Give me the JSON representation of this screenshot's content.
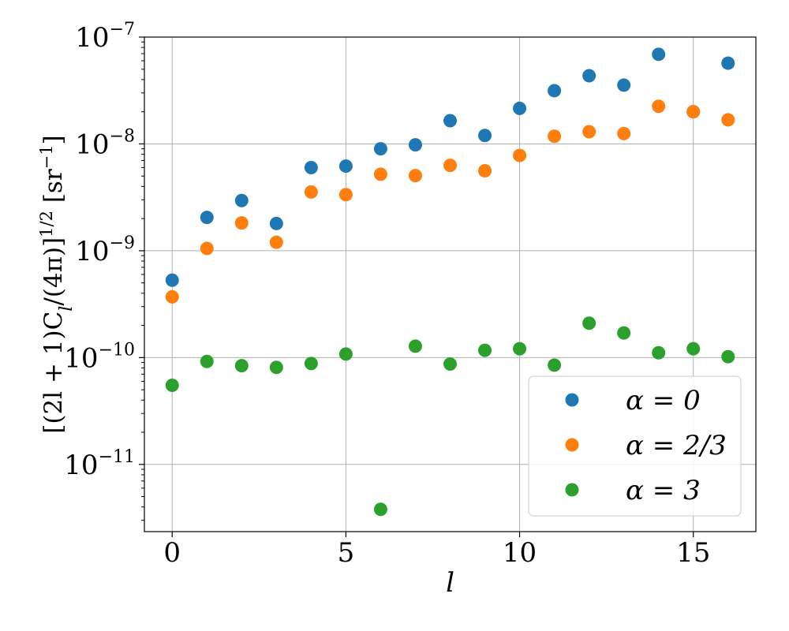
{
  "chart_data": {
    "type": "scatter",
    "xlabel": "l",
    "ylabel": "[(2l + 1)C_l/(4π)]^1/2 [sr^−1]",
    "ylabel_parts": {
      "main": "[(2l + 1)C",
      "sub": "l",
      "mid": "/(4π)]",
      "sup": "1/2",
      "unit": " [sr",
      "unit_sup": "−1",
      "close": "]"
    },
    "x_scale": "linear",
    "y_scale": "log",
    "xlim": [
      -0.8,
      16.8
    ],
    "ylim": [
      2.35e-12,
      1e-07
    ],
    "x_ticks": [
      0,
      5,
      10,
      15
    ],
    "x_tick_labels": [
      "0",
      "5",
      "10",
      "15"
    ],
    "y_ticks": [
      1e-11,
      1e-10,
      1e-09,
      1e-08,
      1e-07
    ],
    "y_tick_labels": [
      {
        "base": "10",
        "exp": "−11"
      },
      {
        "base": "10",
        "exp": "−10"
      },
      {
        "base": "10",
        "exp": "−9"
      },
      {
        "base": "10",
        "exp": "−8"
      },
      {
        "base": "10",
        "exp": "−7"
      }
    ],
    "grid": true,
    "legend_position": "lower-right",
    "series": [
      {
        "name": "α = 0",
        "color": "#1f77b4",
        "x": [
          0,
          1,
          2,
          3,
          4,
          5,
          6,
          7,
          8,
          9,
          10,
          11,
          12,
          13,
          14,
          15,
          16
        ],
        "y": [
          5.3e-10,
          2.05e-09,
          2.95e-09,
          1.8e-09,
          6e-09,
          6.2e-09,
          9e-09,
          9.8e-09,
          1.65e-08,
          1.2e-08,
          2.15e-08,
          3.15e-08,
          4.35e-08,
          3.55e-08,
          6.9e-08,
          2e-08,
          5.7e-08
        ]
      },
      {
        "name": "α = 2/3",
        "color": "#ff7f0e",
        "x": [
          0,
          1,
          2,
          3,
          4,
          5,
          6,
          7,
          8,
          9,
          10,
          11,
          12,
          13,
          14,
          15,
          16
        ],
        "y": [
          3.7e-10,
          1.05e-09,
          1.82e-09,
          1.2e-09,
          3.55e-09,
          3.35e-09,
          5.2e-09,
          5.05e-09,
          6.3e-09,
          5.6e-09,
          7.8e-09,
          1.18e-08,
          1.3e-08,
          1.25e-08,
          2.25e-08,
          2e-08,
          1.68e-08
        ]
      },
      {
        "name": "α = 3",
        "color": "#2ca02c",
        "x": [
          0,
          1,
          2,
          3,
          4,
          5,
          6,
          7,
          8,
          9,
          10,
          11,
          12,
          13,
          14,
          15,
          16
        ],
        "y": [
          5.5e-11,
          9.2e-11,
          8.4e-11,
          8.1e-11,
          8.8e-11,
          1.08e-10,
          3.8e-12,
          1.28e-10,
          8.7e-11,
          1.17e-10,
          1.21e-10,
          8.5e-11,
          2.1e-10,
          1.7e-10,
          1.11e-10,
          1.21e-10,
          1.02e-10
        ]
      }
    ]
  }
}
